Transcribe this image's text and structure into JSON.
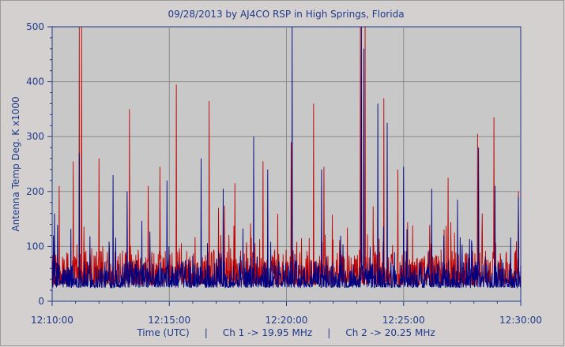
{
  "chart_data": {
    "type": "line",
    "title": "09/28/2013  by  AJ4CO RSP  in  High Springs, Florida",
    "ylabel": "Antenna Temp Deg. K x1000",
    "xlabel": "Time (UTC)     |     Ch 1 -> 19.95 MHz     |     Ch 2 -> 20.25 MHz",
    "x_ticks": [
      "12:10:00",
      "12:15:00",
      "12:20:00",
      "12:25:00",
      "12:30:00"
    ],
    "y_ticks": [
      "0",
      "100",
      "200",
      "300",
      "400",
      "500"
    ],
    "xlim_minutes_after_1210": [
      0,
      20
    ],
    "ylim": [
      0,
      500
    ],
    "grid": true,
    "background": "#c8c8c8",
    "axis_color": "#1f3a8a",
    "series": [
      {
        "name": "Ch 1 -> 19.95 MHz",
        "color": "#000080",
        "baseline": [
          25,
          55
        ],
        "peaks": [
          {
            "t": 0.1,
            "v": 160
          },
          {
            "t": 1.15,
            "v": 270
          },
          {
            "t": 2.6,
            "v": 230
          },
          {
            "t": 3.2,
            "v": 200
          },
          {
            "t": 4.9,
            "v": 220
          },
          {
            "t": 6.35,
            "v": 260
          },
          {
            "t": 7.3,
            "v": 205
          },
          {
            "t": 8.6,
            "v": 300
          },
          {
            "t": 9.2,
            "v": 240
          },
          {
            "t": 10.25,
            "v": 505
          },
          {
            "t": 11.5,
            "v": 240
          },
          {
            "t": 13.2,
            "v": 505
          },
          {
            "t": 13.3,
            "v": 460
          },
          {
            "t": 13.9,
            "v": 360
          },
          {
            "t": 14.3,
            "v": 325
          },
          {
            "t": 15.0,
            "v": 245
          },
          {
            "t": 16.2,
            "v": 205
          },
          {
            "t": 17.3,
            "v": 185
          },
          {
            "t": 18.2,
            "v": 280
          },
          {
            "t": 18.9,
            "v": 210
          },
          {
            "t": 19.9,
            "v": 190
          }
        ]
      },
      {
        "name": "Ch 2 -> 20.25 MHz",
        "color": "#c00000",
        "baseline": [
          30,
          70
        ],
        "peaks": [
          {
            "t": 0.3,
            "v": 210
          },
          {
            "t": 0.9,
            "v": 255
          },
          {
            "t": 1.15,
            "v": 505
          },
          {
            "t": 1.25,
            "v": 500
          },
          {
            "t": 2.0,
            "v": 260
          },
          {
            "t": 3.3,
            "v": 350
          },
          {
            "t": 4.1,
            "v": 210
          },
          {
            "t": 4.6,
            "v": 245
          },
          {
            "t": 5.3,
            "v": 395
          },
          {
            "t": 6.7,
            "v": 365
          },
          {
            "t": 7.8,
            "v": 215
          },
          {
            "t": 9.0,
            "v": 255
          },
          {
            "t": 10.2,
            "v": 290
          },
          {
            "t": 11.15,
            "v": 360
          },
          {
            "t": 11.6,
            "v": 245
          },
          {
            "t": 13.15,
            "v": 505
          },
          {
            "t": 13.35,
            "v": 505
          },
          {
            "t": 14.15,
            "v": 370
          },
          {
            "t": 14.75,
            "v": 240
          },
          {
            "t": 16.9,
            "v": 225
          },
          {
            "t": 18.15,
            "v": 305
          },
          {
            "t": 18.85,
            "v": 335
          },
          {
            "t": 19.9,
            "v": 200
          }
        ]
      }
    ]
  }
}
